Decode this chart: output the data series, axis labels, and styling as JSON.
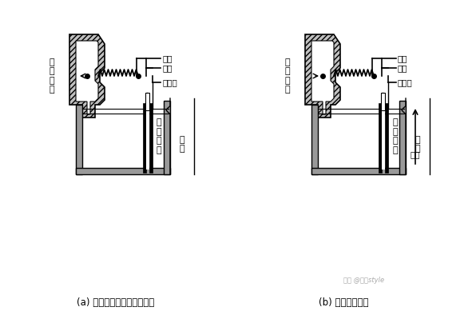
{
  "bg_color": "#ffffff",
  "label_a": "(a) 风机停转（或流量过小）",
  "label_b": "(b) 风机正常运转",
  "label_fengya": "风\n压\n开\n关",
  "label_changbi": "常闭",
  "label_changkai": "常开",
  "label_gonggong": "公共端",
  "label_wenqiuli": "文\n丘\n里\n管",
  "label_yandao": "烟\n道",
  "label_qiliu": "气流",
  "text_color": "#000000",
  "hatch_color": "#555555",
  "gray_fill": "#aaaaaa",
  "dark_fill": "#222222",
  "mid_gray": "#888888"
}
